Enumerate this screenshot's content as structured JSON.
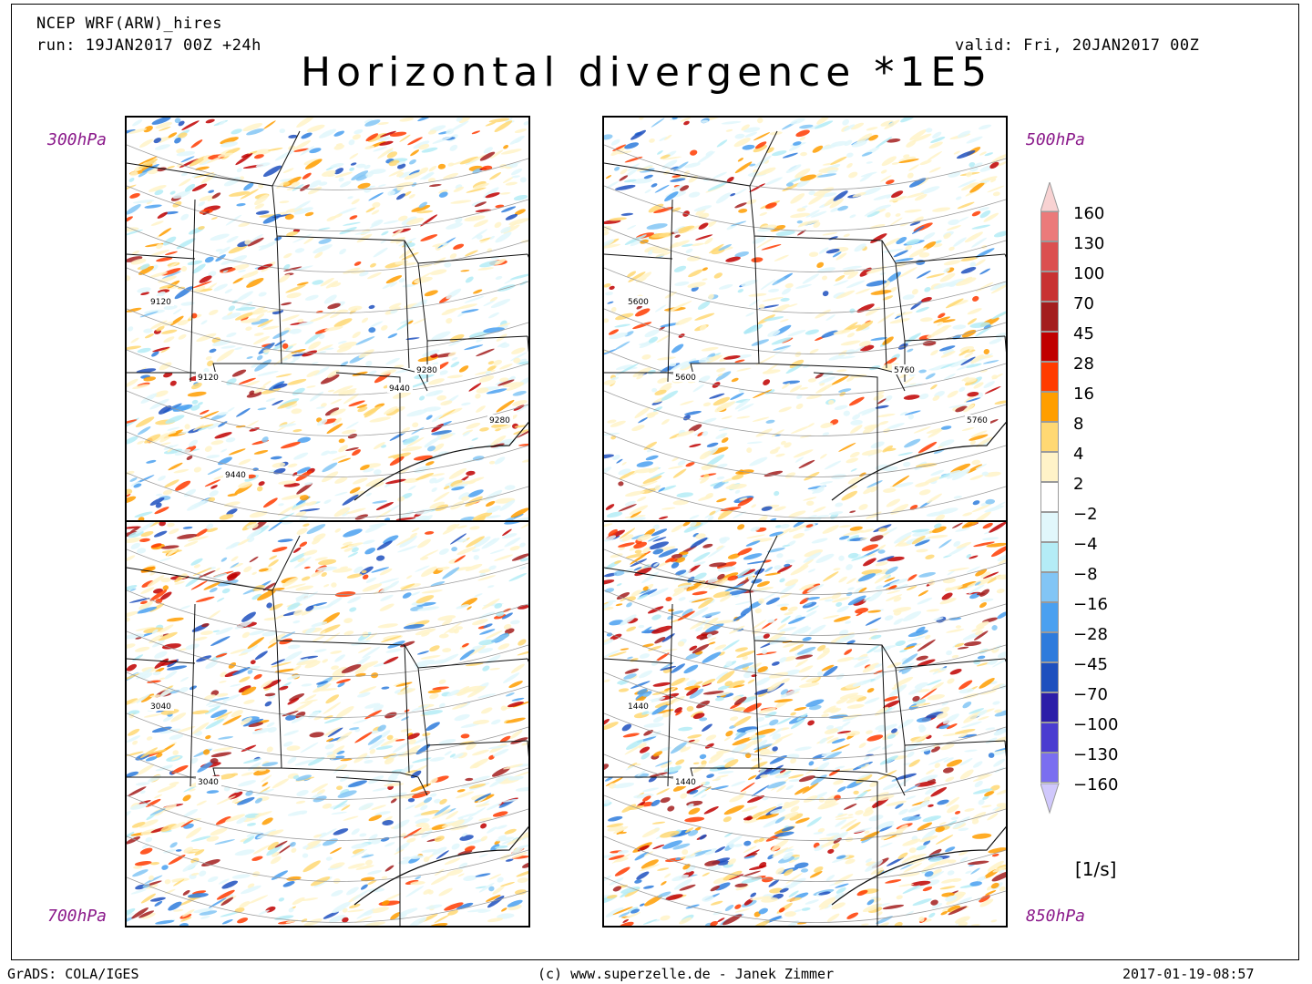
{
  "header": {
    "model": "NCEP WRF(ARW)_hires",
    "run": "run: 19JAN2017 00Z +24h",
    "valid": "valid: Fri, 20JAN2017 00Z",
    "title": "Horizontal divergence *1E5"
  },
  "panels": [
    {
      "level": "300hPa",
      "contours": [
        "9120",
        "9120",
        "9280",
        "9280",
        "9440",
        "9440"
      ],
      "seed": 3
    },
    {
      "level": "500hPa",
      "contours": [
        "5600",
        "5600",
        "5760",
        "5760"
      ],
      "seed": 7
    },
    {
      "level": "700hPa",
      "contours": [
        "3040",
        "3040"
      ],
      "seed": 11
    },
    {
      "level": "850hPa",
      "contours": [
        "1440",
        "1440"
      ],
      "seed": 19
    }
  ],
  "colorbar": {
    "labels": [
      "160",
      "130",
      "100",
      "70",
      "45",
      "28",
      "16",
      "8",
      "4",
      "2",
      "−2",
      "−4",
      "−8",
      "−16",
      "−28",
      "−45",
      "−70",
      "−100",
      "−130",
      "−160"
    ],
    "colors": [
      "#f5a3a3",
      "#eb7a7a",
      "#db5050",
      "#c83232",
      "#a31e1e",
      "#c00000",
      "#ff3b00",
      "#ff9e00",
      "#ffd873",
      "#fff3c8",
      "#ffffff",
      "#e1f7fb",
      "#b4ecf6",
      "#82c5f5",
      "#4aa0f0",
      "#2e7bdc",
      "#1e50be",
      "#2c1ea8",
      "#4a3cd0",
      "#7a6ef0",
      "#a498f8"
    ],
    "unit": "[1/s]"
  },
  "footer": {
    "left": "GrADS: COLA/IGES",
    "center": "(c) www.superzelle.de - Janek Zimmer",
    "right": "2017-01-19-08:57"
  }
}
